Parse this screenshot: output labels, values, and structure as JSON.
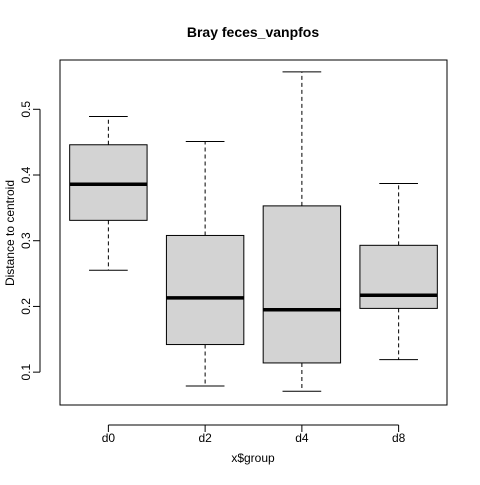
{
  "chart_data": {
    "type": "boxplot",
    "title": "Bray feces_vanpfos",
    "xlabel": "x$group",
    "ylabel": "Distance to centroid",
    "categories": [
      "d0",
      "d2",
      "d4",
      "d8"
    ],
    "boxes": [
      {
        "category": "d0",
        "whisker_low": 0.255,
        "q1": 0.331,
        "median": 0.386,
        "q3": 0.446,
        "whisker_high": 0.489
      },
      {
        "category": "d2",
        "whisker_low": 0.079,
        "q1": 0.142,
        "median": 0.213,
        "q3": 0.308,
        "whisker_high": 0.451
      },
      {
        "category": "d4",
        "whisker_low": 0.071,
        "q1": 0.114,
        "median": 0.195,
        "q3": 0.353,
        "whisker_high": 0.557
      },
      {
        "category": "d8",
        "whisker_low": 0.119,
        "q1": 0.197,
        "median": 0.217,
        "q3": 0.293,
        "whisker_high": 0.387
      }
    ],
    "y_ticks": [
      0.1,
      0.2,
      0.3,
      0.4,
      0.5
    ],
    "y_tick_labels": [
      "0.1",
      "0.2",
      "0.3",
      "0.4",
      "0.5"
    ],
    "ylim": [
      0.05,
      0.575
    ],
    "grid": false,
    "legend": "none",
    "colors": {
      "box_fill": "#d3d3d3",
      "stroke": "#000000",
      "background": "#ffffff"
    }
  }
}
